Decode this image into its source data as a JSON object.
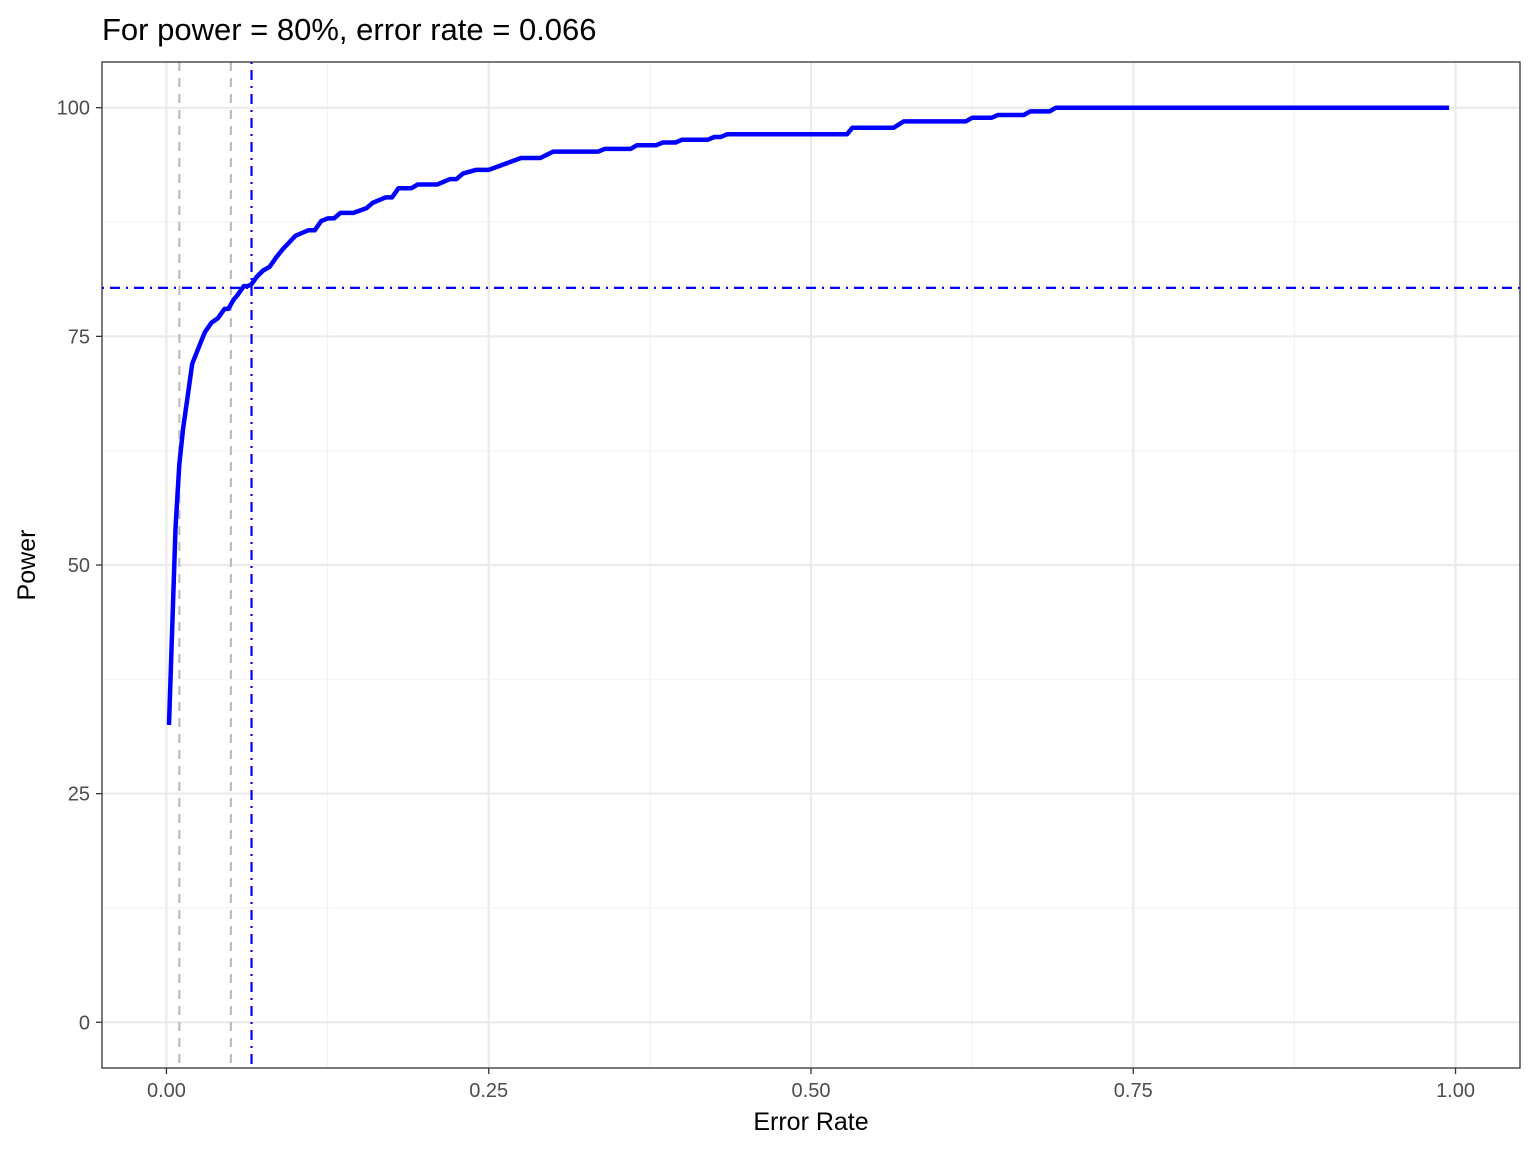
{
  "chart_data": {
    "type": "line",
    "title": "For power = 80%, error rate = 0.066",
    "xlabel": "Error Rate",
    "ylabel": "Power",
    "xlim": [
      -0.05,
      1.05
    ],
    "ylim": [
      -5,
      105
    ],
    "x_ticks": [
      0,
      0.25,
      0.5,
      0.75,
      1
    ],
    "x_tick_labels": [
      "0.00",
      "0.25",
      "0.50",
      "0.75",
      "1.00"
    ],
    "x_minor_ticks": [
      0.125,
      0.375,
      0.625,
      0.875
    ],
    "y_ticks": [
      0,
      25,
      50,
      75,
      100
    ],
    "y_tick_labels": [
      "0",
      "25",
      "50",
      "75",
      "100"
    ],
    "y_minor_ticks": [
      12.5,
      37.5,
      62.5,
      87.5
    ],
    "grid": true,
    "series": [
      {
        "color": "#0000ff",
        "x": [
          0.002,
          0.007,
          0.01,
          0.013,
          0.016,
          0.02,
          0.027,
          0.03,
          0.035,
          0.04,
          0.045,
          0.048,
          0.05,
          0.052,
          0.055,
          0.06,
          0.063,
          0.066,
          0.07,
          0.075,
          0.08,
          0.085,
          0.09,
          0.1,
          0.105,
          0.11,
          0.115,
          0.12,
          0.125,
          0.13,
          0.135,
          0.14,
          0.145,
          0.155,
          0.16,
          0.165,
          0.17,
          0.175,
          0.18,
          0.19,
          0.195,
          0.21,
          0.215,
          0.22,
          0.225,
          0.23,
          0.24,
          0.25,
          0.275,
          0.29,
          0.3,
          0.335,
          0.34,
          0.36,
          0.365,
          0.38,
          0.385,
          0.395,
          0.4,
          0.42,
          0.425,
          0.43,
          0.435,
          0.528,
          0.532,
          0.564,
          0.572,
          0.62,
          0.625,
          0.64,
          0.645,
          0.665,
          0.67,
          0.685,
          0.69,
          0.995
        ],
        "y": [
          32.5,
          54,
          61,
          65,
          68,
          72,
          74.5,
          75.5,
          76.5,
          77,
          78,
          78,
          78.5,
          79,
          79.5,
          80.5,
          80.5,
          80.7,
          81.5,
          82.2,
          82.6,
          83.6,
          84.5,
          86,
          86.3,
          86.6,
          86.6,
          87.6,
          87.9,
          87.9,
          88.5,
          88.5,
          88.5,
          89,
          89.6,
          89.9,
          90.2,
          90.2,
          91.2,
          91.2,
          91.6,
          91.6,
          91.9,
          92.2,
          92.2,
          92.8,
          93.2,
          93.2,
          94.5,
          94.5,
          95.2,
          95.2,
          95.5,
          95.5,
          95.9,
          95.9,
          96.2,
          96.2,
          96.5,
          96.5,
          96.8,
          96.8,
          97.1,
          97.1,
          97.8,
          97.8,
          98.5,
          98.5,
          98.9,
          98.9,
          99.2,
          99.2,
          99.6,
          99.6,
          100,
          100
        ]
      }
    ],
    "vlines": [
      {
        "x": 0.01,
        "style": "dashed",
        "color": "#bebebe"
      },
      {
        "x": 0.05,
        "style": "dashed",
        "color": "#bebebe"
      },
      {
        "x": 0.066,
        "style": "dotdash",
        "color": "#0000ff"
      }
    ],
    "hlines": [
      {
        "y": 80.3,
        "style": "dotdash",
        "color": "#0000ff"
      }
    ]
  }
}
